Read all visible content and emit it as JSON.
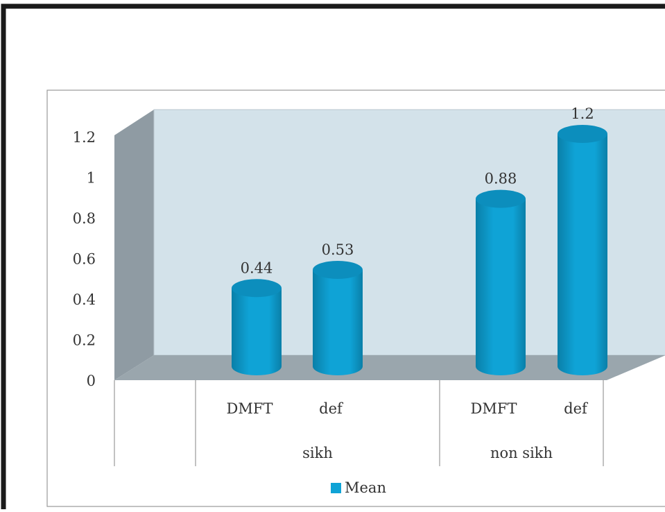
{
  "chart_data": {
    "type": "bar",
    "groups": [
      {
        "label": "sikh",
        "categories": [
          "DMFT",
          "def"
        ]
      },
      {
        "label": "non sikh",
        "categories": [
          "DMFT",
          "def"
        ]
      }
    ],
    "categories": [
      "DMFT",
      "def",
      "DMFT",
      "def"
    ],
    "series": [
      {
        "name": "Mean",
        "values": [
          0.44,
          0.53,
          0.88,
          1.2
        ]
      }
    ],
    "data_labels": [
      "0.44",
      "0.53",
      "0.88",
      "1.2"
    ],
    "y_ticks": [
      "0",
      "0.2",
      "0.4",
      "0.6",
      "0.8",
      "1",
      "1.2"
    ],
    "ylim": [
      0,
      1.2
    ],
    "title": "",
    "xlabel": "",
    "ylabel": "",
    "legend_position": "bottom",
    "style": "3d-cylinder",
    "colors": {
      "bar": "#0fa3d6",
      "bar_dark": "#0a7fa8",
      "bar_top": "#0c8ebd",
      "back_wall": "#d3e2ea",
      "side_wall": "#8f9ba3",
      "floor": "#9aa6ad",
      "frame": "#1a1a1a"
    }
  }
}
